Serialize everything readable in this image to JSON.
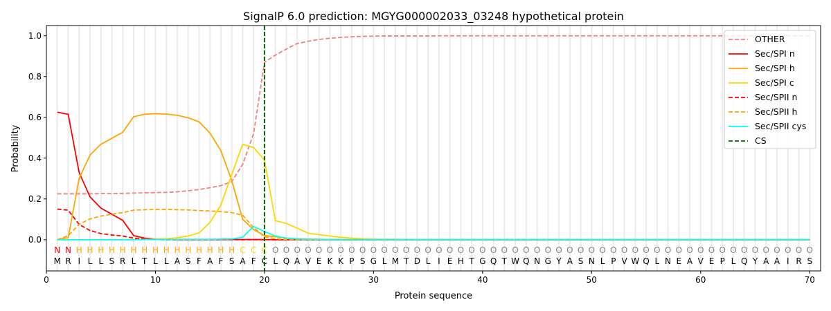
{
  "chart_data": {
    "type": "line",
    "title": "SignalP 6.0 prediction: MGYG000002033_03248 hypothetical protein",
    "xlabel": "Protein sequence",
    "ylabel": "Probability",
    "xlim": [
      0,
      71
    ],
    "ylim": [
      -0.153,
      1.05
    ],
    "xticks": [
      0,
      10,
      20,
      30,
      40,
      50,
      60,
      70
    ],
    "yticks": [
      "0.0",
      "0.2",
      "0.4",
      "0.6",
      "0.8",
      "1.0"
    ],
    "legend_position": "top-right",
    "sequence": [
      "M",
      "R",
      "I",
      "L",
      "L",
      "S",
      "R",
      "L",
      "T",
      "L",
      "L",
      "A",
      "S",
      "F",
      "A",
      "F",
      "S",
      "A",
      "F",
      "C",
      "L",
      "Q",
      "A",
      "V",
      "E",
      "K",
      "K",
      "P",
      "S",
      "G",
      "L",
      "M",
      "T",
      "D",
      "L",
      "I",
      "E",
      "H",
      "T",
      "G",
      "Q",
      "T",
      "W",
      "Q",
      "N",
      "G",
      "Y",
      "A",
      "S",
      "N",
      "L",
      "P",
      "V",
      "W",
      "Q",
      "L",
      "N",
      "E",
      "A",
      "V",
      "E",
      "P",
      "L",
      "Q",
      "Y",
      "A",
      "A",
      "I",
      "R",
      "S"
    ],
    "region_labels": [
      "N",
      "N",
      "H",
      "H",
      "H",
      "H",
      "H",
      "H",
      "H",
      "H",
      "H",
      "H",
      "H",
      "H",
      "H",
      "H",
      "H",
      "C",
      "C",
      "C",
      "O",
      "O",
      "O",
      "O",
      "O",
      "O",
      "O",
      "O",
      "O",
      "O",
      "O",
      "O",
      "O",
      "O",
      "O",
      "O",
      "O",
      "O",
      "O",
      "O",
      "O",
      "O",
      "O",
      "O",
      "O",
      "O",
      "O",
      "O",
      "O",
      "O",
      "O",
      "O",
      "O",
      "O",
      "O",
      "O",
      "O",
      "O",
      "O",
      "O",
      "O",
      "O",
      "O",
      "O",
      "O",
      "O",
      "O",
      "O",
      "O",
      "O"
    ],
    "region_colors": {
      "N": "#ff0000",
      "H": "#ffa500",
      "C": "#ffd700",
      "O": "#808080"
    },
    "cleavage_site": 20,
    "cs_label": "CS",
    "cs_color": "#006400",
    "series": [
      {
        "name": "OTHER",
        "color": "#f08080",
        "dash": true,
        "values": [
          0.225,
          0.225,
          0.225,
          0.225,
          0.226,
          0.226,
          0.227,
          0.229,
          0.23,
          0.231,
          0.232,
          0.235,
          0.24,
          0.246,
          0.255,
          0.265,
          0.285,
          0.37,
          0.52,
          0.87,
          0.905,
          0.935,
          0.962,
          0.973,
          0.982,
          0.988,
          0.992,
          0.995,
          0.997,
          0.998,
          0.999,
          0.999,
          0.999,
          0.999,
          0.999,
          1,
          1,
          1,
          1,
          1,
          1,
          1,
          1,
          1,
          1,
          1,
          1,
          1,
          1,
          1,
          1,
          1,
          1,
          1,
          1,
          1,
          1,
          1,
          1,
          1,
          1,
          1,
          1,
          1,
          1,
          1,
          1,
          1,
          1,
          1
        ]
      },
      {
        "name": "Sec/SPI n",
        "color": "#ff0000",
        "dash": false,
        "values": [
          0.625,
          0.615,
          0.33,
          0.21,
          0.155,
          0.125,
          0.095,
          0.02,
          0.008,
          0.003,
          0.002,
          0.001,
          0.001,
          0.001,
          0.001,
          0.001,
          0.001,
          0.001,
          0.001,
          0.001,
          0,
          0,
          0,
          0,
          0,
          0,
          0,
          0,
          0,
          0,
          0,
          0,
          0,
          0,
          0,
          0,
          0,
          0,
          0,
          0,
          0,
          0,
          0,
          0,
          0,
          0,
          0,
          0,
          0,
          0,
          0,
          0,
          0,
          0,
          0,
          0,
          0,
          0,
          0,
          0,
          0,
          0,
          0,
          0,
          0,
          0,
          0,
          0,
          0,
          0
        ]
      },
      {
        "name": "Sec/SPI h",
        "color": "#ffa500",
        "dash": false,
        "values": [
          0,
          0.01,
          0.3,
          0.415,
          0.468,
          0.497,
          0.527,
          0.603,
          0.615,
          0.618,
          0.616,
          0.61,
          0.598,
          0.578,
          0.523,
          0.437,
          0.29,
          0.1,
          0.05,
          0.02,
          0.015,
          0.008,
          0.005,
          0.003,
          0.002,
          0.001,
          0.001,
          0.001,
          0,
          0,
          0,
          0,
          0,
          0,
          0,
          0,
          0,
          0,
          0,
          0,
          0,
          0,
          0,
          0,
          0,
          0,
          0,
          0,
          0,
          0,
          0,
          0,
          0,
          0,
          0,
          0,
          0,
          0,
          0,
          0,
          0,
          0,
          0,
          0,
          0,
          0,
          0,
          0,
          0,
          0
        ]
      },
      {
        "name": "Sec/SPI c",
        "color": "#ffd700",
        "dash": false,
        "values": [
          0,
          0,
          0,
          0,
          0,
          0,
          0,
          0.001,
          0.002,
          0.003,
          0.005,
          0.01,
          0.018,
          0.033,
          0.085,
          0.17,
          0.32,
          0.468,
          0.452,
          0.39,
          0.093,
          0.08,
          0.057,
          0.032,
          0.025,
          0.018,
          0.012,
          0.008,
          0.005,
          0.003,
          0.002,
          0.002,
          0.001,
          0.001,
          0.001,
          0.001,
          0.001,
          0.001,
          0.001,
          0.001,
          0.001,
          0.001,
          0.001,
          0.001,
          0.001,
          0.001,
          0.001,
          0.001,
          0.001,
          0.001,
          0.001,
          0.001,
          0.001,
          0.001,
          0.001,
          0.001,
          0.001,
          0.001,
          0.001,
          0.001,
          0.001,
          0.001,
          0.001,
          0.001,
          0.001,
          0.001,
          0.001,
          0.001,
          0.001,
          0.001
        ]
      },
      {
        "name": "Sec/SPII n",
        "color": "#ff0000",
        "dash": true,
        "values": [
          0.15,
          0.145,
          0.075,
          0.045,
          0.03,
          0.023,
          0.018,
          0.008,
          0.003,
          0.001,
          0,
          0,
          0,
          0,
          0,
          0,
          0,
          0,
          0,
          0,
          0,
          0,
          0,
          0,
          0,
          0,
          0,
          0,
          0,
          0,
          0,
          0,
          0,
          0,
          0,
          0,
          0,
          0,
          0,
          0,
          0,
          0,
          0,
          0,
          0,
          0,
          0,
          0,
          0,
          0,
          0,
          0,
          0,
          0,
          0,
          0,
          0,
          0,
          0,
          0,
          0,
          0,
          0,
          0,
          0,
          0,
          0,
          0,
          0,
          0
        ]
      },
      {
        "name": "Sec/SPII h",
        "color": "#ffa500",
        "dash": true,
        "values": [
          0,
          0.02,
          0.075,
          0.102,
          0.116,
          0.125,
          0.133,
          0.145,
          0.147,
          0.148,
          0.148,
          0.147,
          0.146,
          0.143,
          0.141,
          0.138,
          0.133,
          0.12,
          0.06,
          0.015,
          0.005,
          0.002,
          0.001,
          0,
          0,
          0,
          0,
          0,
          0,
          0,
          0,
          0,
          0,
          0,
          0,
          0,
          0,
          0,
          0,
          0,
          0,
          0,
          0,
          0,
          0,
          0,
          0,
          0,
          0,
          0,
          0,
          0,
          0,
          0,
          0,
          0,
          0,
          0,
          0,
          0,
          0,
          0,
          0,
          0,
          0,
          0,
          0,
          0,
          0,
          0
        ]
      },
      {
        "name": "Sec/SPII cys",
        "color": "#00ffff",
        "dash": false,
        "values": [
          0,
          0,
          0,
          0,
          0,
          0,
          0,
          0,
          0.001,
          0.001,
          0.001,
          0.002,
          0.002,
          0.002,
          0.002,
          0.003,
          0.004,
          0.012,
          0.065,
          0.04,
          0.018,
          0.008,
          0.004,
          0.002,
          0.002,
          0.001,
          0.001,
          0.001,
          0.001,
          0.001,
          0.001,
          0.001,
          0.001,
          0.001,
          0.001,
          0.001,
          0.001,
          0.001,
          0.001,
          0.001,
          0.001,
          0.001,
          0.001,
          0.001,
          0.001,
          0.001,
          0.001,
          0.001,
          0.001,
          0.001,
          0.001,
          0.001,
          0.001,
          0.001,
          0.001,
          0.001,
          0.001,
          0.001,
          0.001,
          0.001,
          0.001,
          0.001,
          0.001,
          0.001,
          0.001,
          0.001,
          0.001,
          0.001,
          0.001,
          0.001
        ]
      }
    ]
  }
}
